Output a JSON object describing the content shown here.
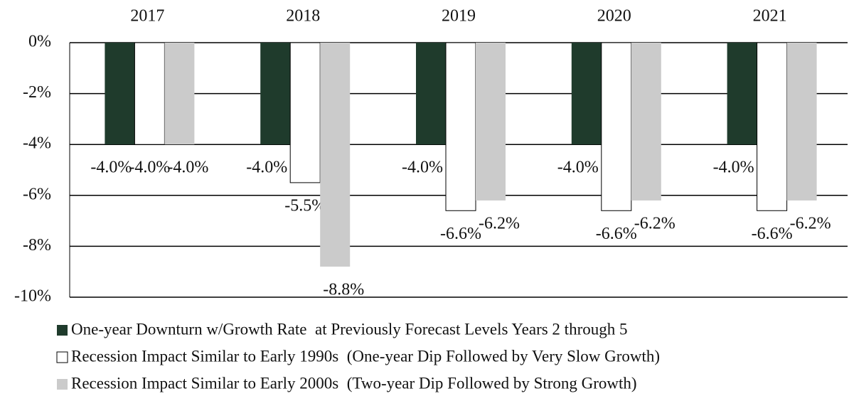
{
  "chart_data": {
    "type": "bar",
    "categories": [
      "2017",
      "2018",
      "2019",
      "2020",
      "2021"
    ],
    "series": [
      {
        "name": "One-year Downturn w/Growth Rate  at Previously Forecast Levels Years 2 through 5",
        "color": "#1f3b2c",
        "values": [
          -4.0,
          -4.0,
          -4.0,
          -4.0,
          -4.0
        ],
        "value_labels": [
          "-4.0%",
          "-4.0%",
          "-4.0%",
          "-4.0%",
          "-4.0%"
        ]
      },
      {
        "name": "Recession Impact Similar to Early 1990s  (One-year Dip Followed by Very Slow Growth)",
        "color": "#ffffff",
        "values": [
          -4.0,
          -5.5,
          -6.6,
          -6.6,
          -6.6
        ],
        "value_labels": [
          "-4.0%",
          "-5.5%",
          "-6.6%",
          "-6.6%",
          "-6.6%"
        ]
      },
      {
        "name": "Recession Impact Similar to Early 2000s  (Two-year Dip Followed by Strong Growth)",
        "color": "#cbcbcb",
        "values": [
          -4.0,
          -8.8,
          -6.2,
          -6.2,
          -6.2
        ],
        "value_labels": [
          "-4.0%",
          "-8.8%",
          "-6.2%",
          "-6.2%",
          "-6.2%"
        ]
      }
    ],
    "ylim": [
      -10,
      0
    ],
    "yticks": [
      {
        "value": 0,
        "label": "0%"
      },
      {
        "value": -2,
        "label": "-2%"
      },
      {
        "value": -4,
        "label": "-4%"
      },
      {
        "value": -6,
        "label": "-6%"
      },
      {
        "value": -8,
        "label": "-8%"
      },
      {
        "value": -10,
        "label": "-10%"
      }
    ],
    "grid": true
  }
}
